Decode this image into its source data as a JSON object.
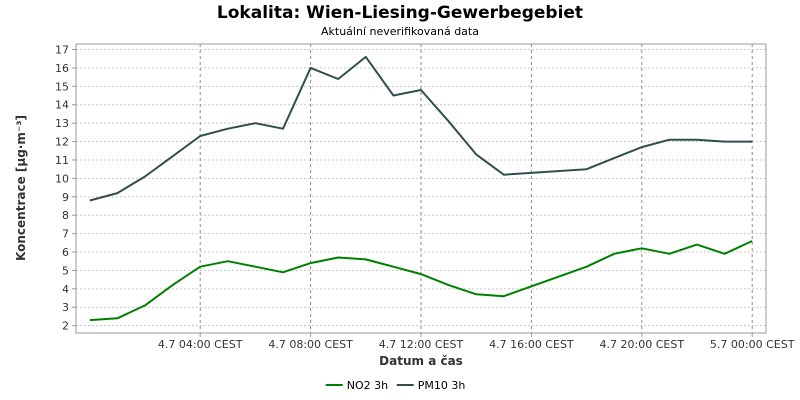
{
  "chart_data": {
    "type": "line",
    "title": "Lokalita: Wien-Liesing-Gewerbegebiet",
    "subtitle": "Aktuální neverifikovaná data",
    "xlabel": "Datum a čas",
    "ylabel": "Koncentrace [µg·m⁻³]",
    "x_ticks": [
      {
        "hour": 4,
        "label": "4.7 04:00 CEST"
      },
      {
        "hour": 8,
        "label": "4.7 08:00 CEST"
      },
      {
        "hour": 12,
        "label": "4.7 12:00 CEST"
      },
      {
        "hour": 16,
        "label": "4.7 16:00 CEST"
      },
      {
        "hour": 20,
        "label": "4.7 20:00 CEST"
      },
      {
        "hour": 24,
        "label": "5.7 00:00 CEST"
      }
    ],
    "xlim": [
      -0.5,
      24.5
    ],
    "ylim": [
      1.6,
      17.3
    ],
    "y_ticks": [
      2,
      3,
      4,
      5,
      6,
      7,
      8,
      9,
      10,
      11,
      12,
      13,
      14,
      15,
      16,
      17
    ],
    "x_hours": [
      0,
      1,
      2,
      3,
      4,
      5,
      6,
      7,
      8,
      9,
      10,
      11,
      12,
      13,
      14,
      15,
      16,
      17,
      18,
      19,
      20,
      21,
      22,
      23,
      24
    ],
    "series": [
      {
        "name": "NO2 3h",
        "color": "#008000",
        "values": [
          2.3,
          2.4,
          3.1,
          4.2,
          5.2,
          5.5,
          5.2,
          4.9,
          5.4,
          5.7,
          5.6,
          5.2,
          4.8,
          4.2,
          3.7,
          3.6,
          null,
          null,
          5.2,
          5.9,
          6.2,
          5.9,
          6.4,
          5.9,
          6.6
        ]
      },
      {
        "name": "PM10 3h",
        "color": "#2f4f4f",
        "values": [
          8.8,
          9.2,
          10.1,
          11.2,
          12.3,
          12.7,
          13.0,
          12.7,
          16.0,
          15.4,
          16.6,
          14.5,
          14.8,
          13.1,
          11.3,
          10.2,
          null,
          null,
          10.5,
          11.1,
          11.7,
          12.1,
          12.1,
          12.0,
          12.0
        ]
      }
    ],
    "grid": true,
    "legend_position": "bottom-center"
  }
}
